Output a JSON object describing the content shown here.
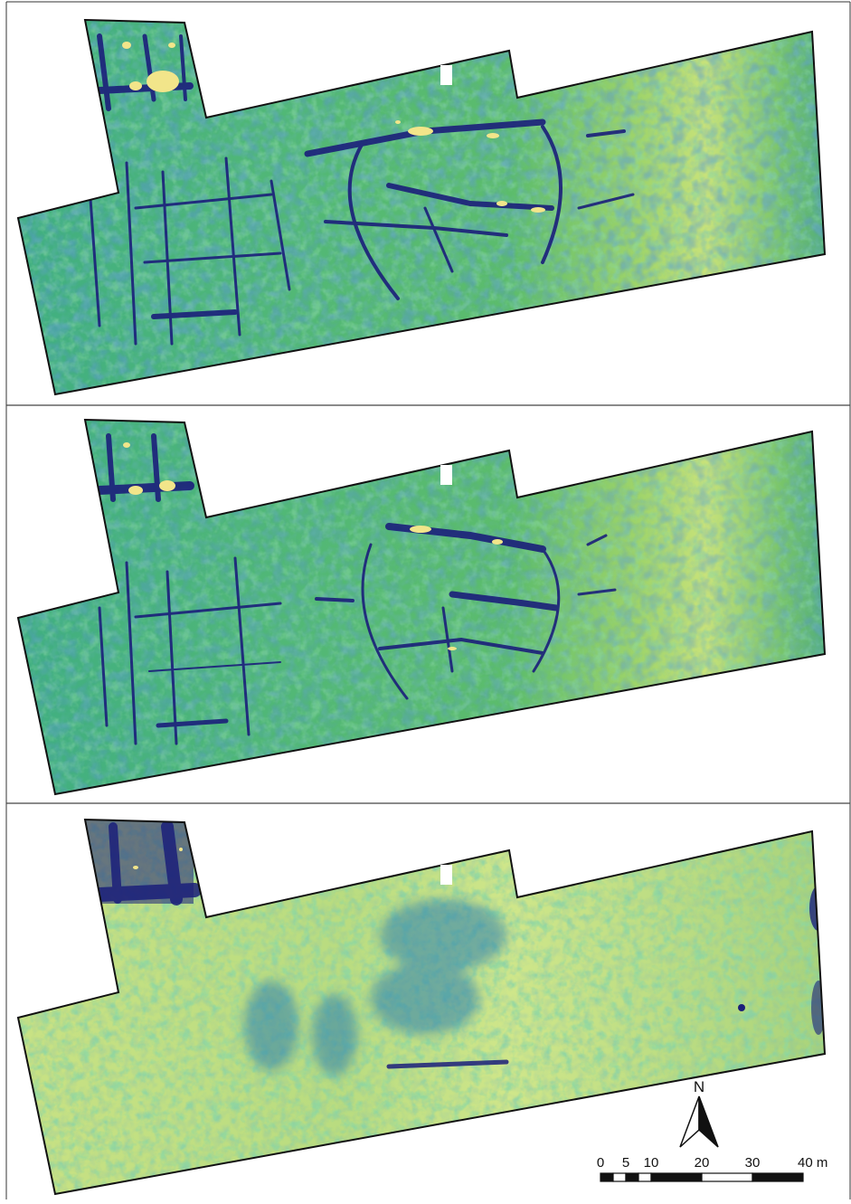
{
  "figure": {
    "panels": [
      {
        "id": "panel-1"
      },
      {
        "id": "panel-2"
      },
      {
        "id": "panel-3"
      }
    ],
    "north_arrow": {
      "label": "N"
    },
    "scale_bar": {
      "ticks": [
        "0",
        "5",
        "10",
        "20",
        "30",
        "40 m"
      ],
      "tick_values": [
        0,
        5,
        10,
        20,
        30,
        40
      ],
      "unit": "m"
    },
    "colors": {
      "background": "#ffffff",
      "outline": "#111111",
      "high_anomaly": "#f2e58a",
      "very_low": "#1b1f7a",
      "low": "#2a5fb0",
      "mid_low": "#2c9fa3",
      "mid": "#5fbf6c",
      "mid_high": "#9fd46a",
      "high": "#d9ea8a"
    }
  }
}
